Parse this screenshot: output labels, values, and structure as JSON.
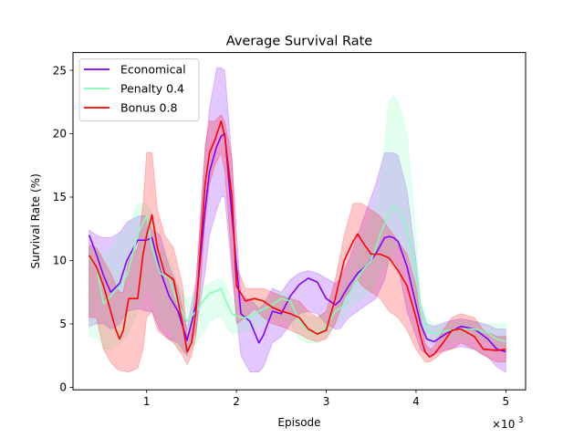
{
  "chart_data": {
    "type": "line",
    "title": "Average Survival Rate",
    "xlabel": "Episode",
    "ylabel": "Survival Rate (%)",
    "x_multiplier_label": "×10",
    "x_multiplier_exp": "3",
    "xlim": [
      180,
      5220
    ],
    "ylim": [
      -0.2,
      26.4
    ],
    "x_ticks": [
      1000,
      2000,
      3000,
      4000,
      5000
    ],
    "x_tick_labels": [
      "1",
      "2",
      "3",
      "4",
      "5"
    ],
    "y_ticks": [
      0,
      5,
      10,
      15,
      20,
      25
    ],
    "y_tick_labels": [
      "0",
      "5",
      "10",
      "15",
      "20",
      "25"
    ],
    "grid": false,
    "legend_position": "top-left",
    "series": [
      {
        "name": "Economical",
        "color": "#8000ff",
        "fill_color": "#8000ff",
        "x": [
          360,
          440,
          520,
          600,
          700,
          780,
          900,
          1000,
          1060,
          1150,
          1250,
          1350,
          1450,
          1550,
          1650,
          1700,
          1780,
          1830,
          1870,
          1950,
          2050,
          2150,
          2250,
          2300,
          2400,
          2500,
          2600,
          2700,
          2800,
          2900,
          3000,
          3100,
          3150,
          3250,
          3350,
          3450,
          3550,
          3650,
          3700,
          3750,
          3800,
          3900,
          4000,
          4050,
          4120,
          4200,
          4350,
          4500,
          4650,
          4800,
          4900,
          5000
        ],
        "y": [
          12.0,
          10.5,
          8.8,
          7.5,
          8.2,
          10.0,
          11.6,
          11.6,
          11.8,
          9.2,
          7.2,
          6.0,
          3.7,
          6.5,
          14.0,
          17.0,
          19.0,
          19.8,
          20.0,
          13.5,
          5.8,
          5.2,
          3.5,
          4.1,
          6.0,
          5.8,
          7.2,
          8.1,
          8.6,
          8.3,
          7.0,
          6.5,
          6.8,
          8.0,
          9.0,
          9.6,
          10.5,
          11.8,
          11.9,
          11.8,
          11.5,
          9.5,
          6.5,
          5.0,
          3.8,
          3.6,
          4.3,
          4.8,
          4.6,
          3.8,
          3.0,
          2.8
        ],
        "lower": [
          4.8,
          5.0,
          5.0,
          4.6,
          5.0,
          6.0,
          6.2,
          6.0,
          6.0,
          4.5,
          3.8,
          3.5,
          2.5,
          4.5,
          9.0,
          12.0,
          14.0,
          15.0,
          15.0,
          9.0,
          2.5,
          1.2,
          1.2,
          1.6,
          3.5,
          4.0,
          5.0,
          5.8,
          6.0,
          5.8,
          5.0,
          4.6,
          4.6,
          5.5,
          6.0,
          6.5,
          7.0,
          8.5,
          10.0,
          10.0,
          9.5,
          6.0,
          4.0,
          3.0,
          2.6,
          2.6,
          3.0,
          3.2,
          3.0,
          2.4,
          1.6,
          1.2
        ],
        "upper": [
          12.4,
          12.0,
          11.8,
          11.8,
          12.2,
          13.0,
          13.5,
          13.5,
          12.4,
          12.0,
          9.5,
          7.8,
          4.6,
          8.5,
          18.5,
          22.0,
          25.2,
          25.2,
          25.0,
          18.0,
          7.0,
          7.0,
          6.2,
          6.5,
          7.8,
          7.5,
          8.5,
          9.0,
          9.2,
          9.0,
          8.6,
          8.2,
          8.5,
          10.0,
          12.0,
          14.0,
          16.0,
          18.5,
          18.5,
          18.5,
          18.3,
          15.5,
          10.0,
          6.5,
          5.0,
          4.8,
          5.2,
          5.4,
          5.2,
          4.9,
          4.6,
          4.6
        ]
      },
      {
        "name": "Penalty 0.4",
        "color": "#80ffb4",
        "fill_color": "#80ffb4",
        "x": [
          360,
          440,
          520,
          600,
          700,
          780,
          900,
          960,
          1000,
          1060,
          1150,
          1250,
          1350,
          1450,
          1550,
          1650,
          1700,
          1780,
          1830,
          1870,
          1950,
          2050,
          2150,
          2250,
          2400,
          2500,
          2600,
          2700,
          2800,
          2900,
          3000,
          3100,
          3200,
          3300,
          3400,
          3500,
          3600,
          3700,
          3750,
          3800,
          3900,
          4000,
          4050,
          4120,
          4200,
          4350,
          4500,
          4650,
          4800,
          4900,
          5000
        ],
        "y": [
          10.2,
          9.5,
          6.6,
          7.2,
          8.0,
          8.8,
          12.0,
          13.0,
          13.5,
          11.0,
          9.0,
          8.6,
          6.5,
          5.2,
          6.0,
          7.0,
          7.4,
          7.6,
          7.8,
          7.0,
          5.8,
          5.5,
          5.5,
          6.0,
          6.5,
          7.0,
          6.8,
          5.2,
          4.5,
          4.2,
          4.8,
          6.0,
          6.5,
          8.0,
          9.2,
          10.0,
          12.0,
          13.8,
          14.3,
          14.0,
          12.5,
          9.0,
          6.0,
          4.5,
          4.2,
          4.5,
          4.6,
          4.6,
          4.3,
          3.8,
          3.6
        ],
        "lower": [
          4.0,
          4.0,
          3.0,
          3.0,
          3.5,
          4.0,
          6.0,
          7.0,
          8.0,
          7.0,
          5.0,
          4.5,
          3.0,
          2.5,
          3.5,
          4.5,
          5.2,
          5.5,
          5.5,
          5.0,
          4.2,
          4.4,
          4.5,
          4.8,
          5.5,
          5.5,
          5.0,
          3.8,
          3.5,
          3.5,
          4.0,
          5.0,
          5.5,
          6.5,
          7.0,
          7.5,
          9.0,
          10.0,
          11.0,
          11.0,
          10.0,
          7.0,
          4.5,
          3.6,
          3.5,
          3.8,
          4.0,
          4.0,
          3.5,
          3.0,
          2.8
        ],
        "upper": [
          11.0,
          11.0,
          10.5,
          11.0,
          12.0,
          12.5,
          14.5,
          14.5,
          14.5,
          13.5,
          11.0,
          10.0,
          8.0,
          7.0,
          7.5,
          8.0,
          8.2,
          8.5,
          8.5,
          8.2,
          7.0,
          6.5,
          6.5,
          7.0,
          7.2,
          7.5,
          7.2,
          6.5,
          5.5,
          5.5,
          6.0,
          7.0,
          8.0,
          10.0,
          12.0,
          13.5,
          16.0,
          22.5,
          23.0,
          22.5,
          20.0,
          12.0,
          7.0,
          5.5,
          5.0,
          5.0,
          5.2,
          5.2,
          5.0,
          5.0,
          5.0
        ]
      },
      {
        "name": "Bonus 0.8",
        "color": "#ff0000",
        "fill_color": "#ff0000",
        "x": [
          360,
          440,
          520,
          600,
          660,
          700,
          740,
          800,
          900,
          960,
          1000,
          1060,
          1120,
          1200,
          1300,
          1400,
          1450,
          1500,
          1550,
          1600,
          1650,
          1700,
          1760,
          1830,
          1870,
          1950,
          2000,
          2100,
          2200,
          2300,
          2400,
          2500,
          2600,
          2700,
          2800,
          2900,
          3000,
          3100,
          3200,
          3300,
          3350,
          3400,
          3500,
          3600,
          3700,
          3800,
          3900,
          4000,
          4050,
          4100,
          4150,
          4200,
          4300,
          4400,
          4500,
          4650,
          4750,
          4900,
          5000
        ],
        "y": [
          10.4,
          9.5,
          8.0,
          6.0,
          4.5,
          3.8,
          4.5,
          7.0,
          7.0,
          10.5,
          12.0,
          13.6,
          11.0,
          9.0,
          8.5,
          5.0,
          2.8,
          3.5,
          6.0,
          11.0,
          16.0,
          18.5,
          19.5,
          21.0,
          19.8,
          15.0,
          8.0,
          6.8,
          7.0,
          6.8,
          6.3,
          6.0,
          5.8,
          5.5,
          4.6,
          4.2,
          4.5,
          7.0,
          10.0,
          11.5,
          12.1,
          11.5,
          10.5,
          10.5,
          10.2,
          9.2,
          8.0,
          5.5,
          4.0,
          2.8,
          2.4,
          2.6,
          3.5,
          4.5,
          4.6,
          4.0,
          3.0,
          2.9,
          3.0
        ],
        "lower": [
          5.5,
          5.5,
          3.0,
          2.0,
          1.5,
          1.3,
          1.3,
          1.2,
          1.5,
          3.0,
          5.5,
          6.0,
          4.5,
          4.0,
          3.5,
          2.5,
          1.8,
          2.5,
          4.0,
          8.0,
          13.0,
          16.0,
          17.5,
          18.5,
          17.0,
          10.0,
          5.0,
          5.5,
          6.2,
          5.5,
          5.0,
          4.8,
          4.5,
          4.2,
          3.8,
          3.6,
          3.8,
          5.0,
          7.0,
          8.0,
          8.5,
          8.0,
          7.5,
          7.0,
          6.0,
          5.5,
          4.5,
          3.0,
          2.5,
          2.0,
          2.0,
          2.2,
          2.8,
          3.0,
          3.5,
          3.0,
          2.5,
          2.0,
          2.0
        ],
        "upper": [
          11.2,
          11.0,
          10.0,
          9.0,
          8.0,
          7.5,
          7.5,
          10.0,
          11.0,
          14.5,
          18.5,
          18.5,
          14.0,
          12.0,
          11.0,
          8.0,
          4.0,
          5.0,
          8.0,
          13.0,
          19.0,
          21.0,
          21.0,
          21.5,
          21.0,
          18.0,
          9.5,
          7.8,
          7.8,
          7.8,
          7.5,
          7.2,
          7.0,
          6.8,
          6.0,
          5.5,
          6.0,
          8.5,
          12.0,
          14.5,
          14.5,
          14.5,
          14.0,
          13.5,
          12.5,
          11.5,
          10.5,
          8.0,
          5.5,
          3.5,
          3.0,
          3.2,
          4.5,
          5.5,
          5.8,
          5.5,
          4.5,
          4.0,
          4.0
        ]
      }
    ]
  }
}
